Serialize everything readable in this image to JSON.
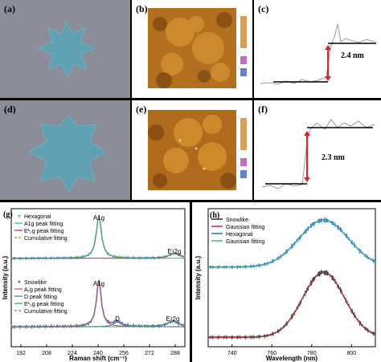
{
  "colors": {
    "background": "#000000",
    "hexagonal_data": "#4fb0d9",
    "a1g_fit": "#2eb59a",
    "e2g_fit": "#b2243a",
    "cumulative": "#9a8a1e",
    "snowlike_data": "#6a6f8c",
    "a1g_fit_snow": "#e0454d",
    "d_fit": "#3a6ec4",
    "e2g_fit_snow": "#35a04a",
    "cumulative_snow": "#6d78c9",
    "pl_snowlike": "#3a3a3a",
    "pl_gauss": "#cc3a3a",
    "pl_hex": "#2f7fc8",
    "pl_gauss2": "#4fb39c",
    "arrow": "#e0202a"
  },
  "panels": {
    "a": {
      "label": "(a)"
    },
    "b": {
      "label": "(b)"
    },
    "c": {
      "label": "(c)",
      "height_text": "2.4 nm"
    },
    "d": {
      "label": "(d)"
    },
    "e": {
      "label": "(e)"
    },
    "f": {
      "label": "(f)",
      "height_text": "2.3 nm"
    }
  },
  "chart_data": [
    {
      "panel": "(g)",
      "type": "line",
      "xlabel": "Raman shift (cm⁻¹)",
      "ylabel": "Intensity (a.u.)",
      "xlim": [
        186,
        294
      ],
      "xticks": [
        192,
        208,
        224,
        240,
        256,
        272,
        288
      ],
      "top_legend_title": "Hexagonal",
      "top_legend": [
        "A1g peak fitting",
        "E¹₂g peak fitting",
        "Cumulative fitting"
      ],
      "bottom_legend_title": "Snowlike",
      "bottom_legend": [
        "A₁g peak fitting",
        "D peak fitting",
        "E¹₂g peak fitting",
        "Cumulative fitting"
      ],
      "peak_labels": {
        "a1g_top": "A1g",
        "e2g_top": "E¹2g",
        "a1g_bottom": "A1g",
        "d_bottom": "D",
        "e2g_bottom": "E¹2g"
      },
      "hexagonal": {
        "baseline": 0.08,
        "peaks": [
          {
            "name": "A1g",
            "center": 240.5,
            "height": 1.0,
            "width": 2.0
          },
          {
            "name": "E12g",
            "center": 287.5,
            "height": 0.12,
            "width": 4.0
          }
        ]
      },
      "snowlike": {
        "baseline": 0.05,
        "peaks": [
          {
            "name": "A1g",
            "center": 240.5,
            "height": 1.0,
            "width": 1.8
          },
          {
            "name": "D",
            "center": 252.0,
            "height": 0.1,
            "width": 3.0
          },
          {
            "name": "E12g",
            "center": 286.5,
            "height": 0.12,
            "width": 4.0
          }
        ]
      }
    },
    {
      "panel": "(h)",
      "type": "line",
      "xlabel": "Wavelength (nm)",
      "ylabel": "Intensity (a.u.)",
      "xlim": [
        728,
        812
      ],
      "xticks": [
        740,
        760,
        780,
        800
      ],
      "legend": [
        "Snowlike",
        "Gaussian fitting",
        "Hexagonal",
        "Gaussian fitting"
      ],
      "snowlike": {
        "center": 786,
        "height": 0.9,
        "sigma": 10.5,
        "baseline": 0.02
      },
      "hexagonal": {
        "center": 786,
        "height": 0.78,
        "sigma": 12.5,
        "baseline": 0.07
      }
    }
  ]
}
